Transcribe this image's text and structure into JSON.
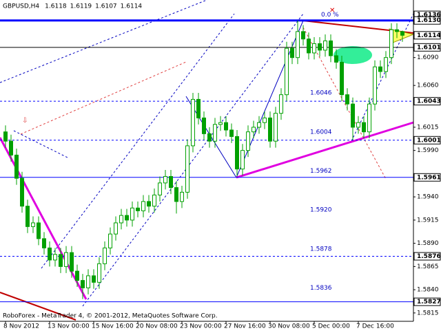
{
  "chart_data": {
    "type": "candlestick",
    "header": {
      "symbol": "GBPUSD,H4",
      "ohlc": [
        1.6118,
        1.6119,
        1.6107,
        1.6114
      ]
    },
    "footer": "RoboForex - MetaTrader 4, © 2001-2012, MetaQuotes Software Corp.",
    "categories": [
      "8 Nov 2012",
      null,
      null,
      null,
      null,
      null,
      null,
      null,
      "13 Nov 00:00",
      null,
      null,
      null,
      null,
      null,
      null,
      null,
      "15 Nov 16:00",
      null,
      null,
      null,
      null,
      null,
      null,
      null,
      "20 Nov 08:00",
      null,
      null,
      null,
      null,
      null,
      null,
      null,
      "23 Nov 00:00",
      null,
      null,
      null,
      null,
      null,
      null,
      null,
      "27 Nov 16:00",
      null,
      null,
      null,
      null,
      null,
      null,
      null,
      "30 Nov 08:00",
      null,
      null,
      null,
      null,
      null,
      null,
      null,
      "5 Dec 00:00",
      null,
      null,
      null,
      null,
      null,
      null,
      null,
      "7 Dec 16:00",
      null,
      null,
      null,
      null,
      null,
      null,
      null,
      null
    ],
    "open": [
      1.601,
      1.6,
      1.5985,
      1.596,
      1.593,
      1.5908,
      1.5912,
      1.5895,
      1.5885,
      1.5872,
      1.5878,
      1.5865,
      1.588,
      1.586,
      1.585,
      1.5842,
      1.5855,
      1.5848,
      1.5868,
      1.5885,
      1.59,
      1.5912,
      1.592,
      1.5915,
      1.5928,
      1.5925,
      1.5935,
      1.593,
      1.5942,
      1.5955,
      1.5962,
      1.595,
      1.5935,
      1.5945,
      1.5995,
      1.6045,
      1.6025,
      1.6008,
      1.6,
      1.6018,
      1.602,
      1.6012,
      1.6005,
      1.597,
      1.599,
      1.601,
      1.6015,
      1.602,
      1.6025,
      1.6,
      1.603,
      1.605,
      1.61,
      1.609,
      1.6118,
      1.611,
      1.6095,
      1.6105,
      1.6098,
      1.6108,
      1.6092,
      1.6085,
      1.605,
      1.604,
      1.6015,
      1.602,
      1.601,
      1.604,
      1.608,
      1.6075,
      1.609,
      1.612,
      1.6118
    ],
    "high": [
      1.6017,
      1.6007,
      1.5992,
      1.5967,
      1.5937,
      1.5919,
      1.5919,
      1.5902,
      1.5892,
      1.5885,
      1.5885,
      1.5887,
      1.5887,
      1.5867,
      1.5857,
      1.5862,
      1.5862,
      1.5875,
      1.5892,
      1.5907,
      1.5919,
      1.5927,
      1.5927,
      1.5935,
      1.5935,
      1.5942,
      1.5942,
      1.5949,
      1.5962,
      1.5969,
      1.5969,
      1.5957,
      1.5952,
      1.6002,
      1.6052,
      1.6052,
      1.6032,
      1.6015,
      1.6025,
      1.6027,
      1.6027,
      1.6019,
      1.6012,
      1.5997,
      1.6017,
      1.6022,
      1.6027,
      1.6032,
      1.6032,
      1.6037,
      1.6057,
      1.6107,
      1.6107,
      1.613,
      1.6125,
      1.6117,
      1.6112,
      1.6112,
      1.6115,
      1.6115,
      1.6099,
      1.6092,
      1.6057,
      1.6047,
      1.6027,
      1.6027,
      1.6047,
      1.6087,
      1.6087,
      1.6097,
      1.6127,
      1.6127,
      1.6119
    ],
    "low": [
      1.5993,
      1.5978,
      1.5953,
      1.5923,
      1.5901,
      1.5901,
      1.5888,
      1.5878,
      1.5865,
      1.5865,
      1.5858,
      1.5858,
      1.5853,
      1.5843,
      1.583,
      1.5835,
      1.5841,
      1.5841,
      1.5861,
      1.5878,
      1.5893,
      1.5905,
      1.5908,
      1.5908,
      1.5918,
      1.5918,
      1.5923,
      1.5923,
      1.5935,
      1.5948,
      1.5943,
      1.5922,
      1.5928,
      1.5938,
      1.5988,
      1.6018,
      1.6001,
      1.5993,
      1.5993,
      1.6011,
      1.6005,
      1.5998,
      1.5962,
      1.5963,
      1.5983,
      1.6003,
      1.6008,
      1.6013,
      1.5993,
      1.5993,
      1.6023,
      1.6043,
      1.6083,
      1.6083,
      1.6103,
      1.6088,
      1.6088,
      1.6091,
      1.6091,
      1.6085,
      1.6078,
      1.6043,
      1.6033,
      1.6001,
      1.6008,
      1.6003,
      1.6003,
      1.6033,
      1.6068,
      1.6068,
      1.6083,
      1.6111,
      1.6107
    ],
    "close": [
      1.6,
      1.5985,
      1.596,
      1.593,
      1.5908,
      1.5912,
      1.5895,
      1.5885,
      1.5872,
      1.5878,
      1.5865,
      1.588,
      1.586,
      1.585,
      1.5842,
      1.5855,
      1.5848,
      1.5868,
      1.5885,
      1.59,
      1.5912,
      1.592,
      1.5915,
      1.5928,
      1.5925,
      1.5935,
      1.593,
      1.5942,
      1.5955,
      1.5962,
      1.595,
      1.5935,
      1.5945,
      1.5995,
      1.6045,
      1.6025,
      1.6008,
      1.6,
      1.6018,
      1.602,
      1.6012,
      1.6005,
      1.597,
      1.599,
      1.601,
      1.6015,
      1.602,
      1.6025,
      1.6,
      1.603,
      1.605,
      1.61,
      1.609,
      1.6118,
      1.611,
      1.6095,
      1.6105,
      1.6098,
      1.6108,
      1.6092,
      1.6085,
      1.605,
      1.604,
      1.6015,
      1.602,
      1.601,
      1.604,
      1.608,
      1.6075,
      1.609,
      1.612,
      1.6118,
      1.6114
    ],
    "color": "#00a000",
    "ylim": [
      1.5806,
      1.6152
    ],
    "yticks": [
      {
        "value": 1.609,
        "label": "1.6090"
      },
      {
        "value": 1.606,
        "label": "1.6060"
      },
      {
        "value": 1.6015,
        "label": "1.6015"
      },
      {
        "value": 1.599,
        "label": "1.5990"
      },
      {
        "value": 1.594,
        "label": "1.5940"
      },
      {
        "value": 1.5915,
        "label": "1.5915"
      },
      {
        "value": 1.589,
        "label": "1.5890"
      },
      {
        "value": 1.5865,
        "label": "1.5865"
      },
      {
        "value": 1.584,
        "label": "1.5840"
      },
      {
        "value": 1.5815,
        "label": "1.5815"
      }
    ],
    "levels": [
      {
        "value": 1.6136,
        "label": "1.6136",
        "color": "#000000",
        "style": "none"
      },
      {
        "value": 1.613,
        "label": "1.6130",
        "color": "#0000ff",
        "style": "solid"
      },
      {
        "value": 1.6114,
        "label": "1.6114",
        "color": "#000000",
        "style": "none"
      },
      {
        "value": 1.6101,
        "label": "1.6101",
        "color": "#000000",
        "style": "solid"
      },
      {
        "value": 1.6043,
        "label": "1.6043",
        "color": "#0000ff",
        "style": "dashed"
      },
      {
        "value": 1.6001,
        "label": "1.6001",
        "color": "#0000ff",
        "style": "dashed"
      },
      {
        "value": 1.5961,
        "label": "1.5961",
        "color": "#0000ff",
        "style": "solid"
      },
      {
        "value": 1.5876,
        "label": "1.5876",
        "color": "#0000ff",
        "style": "dashed"
      },
      {
        "value": 1.5827,
        "label": "1.5827",
        "color": "#0000ff",
        "style": "solid"
      }
    ],
    "fib_levels": [
      {
        "value": 1.613,
        "label": "0.0 %"
      },
      {
        "value": 1.6046,
        "label": "1.6046"
      },
      {
        "value": 1.6004,
        "label": "1.6004"
      },
      {
        "value": 1.5962,
        "label": "1.5962"
      },
      {
        "value": 1.592,
        "label": "1.5920"
      },
      {
        "value": 1.5878,
        "label": "1.5878"
      },
      {
        "value": 1.5836,
        "label": "1.5836"
      }
    ]
  }
}
